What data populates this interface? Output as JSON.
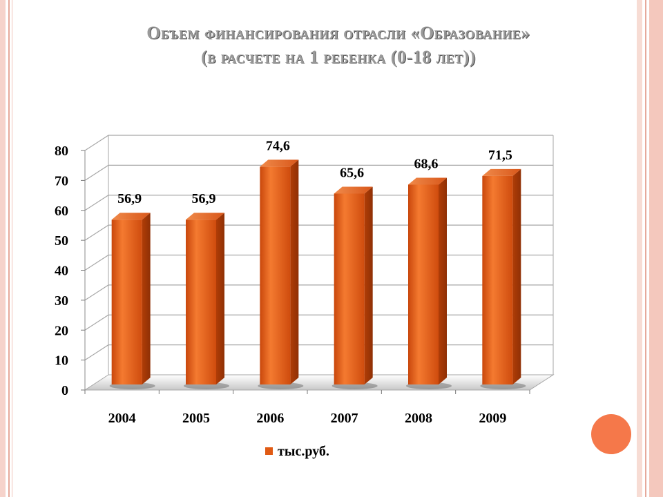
{
  "chart_data": {
    "type": "bar",
    "title": [
      "Объем финансирования отрасли «Образование»",
      "(в расчете на 1 ребенка (0-18 лет))"
    ],
    "categories": [
      "2004",
      "2005",
      "2006",
      "2007",
      "2008",
      "2009"
    ],
    "series": [
      {
        "name": "тыс.руб.",
        "values": [
          56.9,
          56.9,
          74.6,
          65.6,
          68.6,
          71.5
        ]
      }
    ],
    "value_labels": [
      "56,9",
      "56,9",
      "74,6",
      "65,6",
      "68,6",
      "71,5"
    ],
    "y_ticks": [
      "0",
      "10",
      "20",
      "30",
      "40",
      "50",
      "60",
      "70",
      "80"
    ],
    "ylim": [
      0,
      80
    ],
    "grid": true,
    "legend_position": "bottom",
    "colors": {
      "bar": "#e05a14",
      "bar_light": "#f47a30",
      "bar_dark": "#b53f08",
      "grid": "#a6a6a6"
    }
  }
}
